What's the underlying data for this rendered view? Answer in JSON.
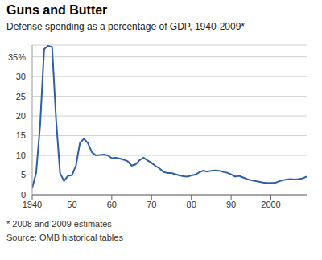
{
  "chart_data": {
    "type": "line",
    "title": "Guns and Butter",
    "subtitle": "Defense spending as a percentage of GDP, 1940-2009*",
    "footnote": "* 2008 and 2009 estimates",
    "source": "Source: OMB historical tables",
    "x": [
      1940,
      1941,
      1942,
      1943,
      1944,
      1945,
      1946,
      1947,
      1948,
      1949,
      1950,
      1951,
      1952,
      1953,
      1954,
      1955,
      1956,
      1957,
      1958,
      1959,
      1960,
      1961,
      1962,
      1963,
      1964,
      1965,
      1966,
      1967,
      1968,
      1969,
      1970,
      1971,
      1972,
      1973,
      1974,
      1975,
      1976,
      1977,
      1978,
      1979,
      1980,
      1981,
      1982,
      1983,
      1984,
      1985,
      1986,
      1987,
      1988,
      1989,
      1990,
      1991,
      1992,
      1993,
      1994,
      1995,
      1996,
      1997,
      1998,
      1999,
      2000,
      2001,
      2002,
      2003,
      2004,
      2005,
      2006,
      2007,
      2008,
      2009
    ],
    "values": [
      1.7,
      5.6,
      17.8,
      37.0,
      37.8,
      37.5,
      19.2,
      5.5,
      3.5,
      4.8,
      5.0,
      7.4,
      13.2,
      14.2,
      13.1,
      10.8,
      10.0,
      10.1,
      10.2,
      10.0,
      9.3,
      9.4,
      9.2,
      8.9,
      8.5,
      7.4,
      7.7,
      8.8,
      9.4,
      8.7,
      8.1,
      7.3,
      6.7,
      5.8,
      5.5,
      5.5,
      5.2,
      4.9,
      4.7,
      4.6,
      4.9,
      5.1,
      5.7,
      6.1,
      5.9,
      6.1,
      6.2,
      6.1,
      5.8,
      5.6,
      5.2,
      4.6,
      4.8,
      4.4,
      4.0,
      3.7,
      3.5,
      3.3,
      3.1,
      3.0,
      3.0,
      3.0,
      3.4,
      3.7,
      3.9,
      4.0,
      3.9,
      4.0,
      4.2,
      4.6
    ],
    "color": "#2b5fa8",
    "xlim": [
      1940,
      2009
    ],
    "xticks": [
      1940,
      {
        "value": 1950,
        "label": "50"
      },
      {
        "value": 1960,
        "label": "60"
      },
      {
        "value": 1970,
        "label": "70"
      },
      {
        "value": 1980,
        "label": "80"
      },
      {
        "value": 1990,
        "label": "90"
      },
      2000
    ],
    "ylim": [
      0,
      38
    ],
    "yticks": [
      0,
      5,
      10,
      15,
      20,
      25,
      30,
      {
        "value": 35,
        "label": "35%"
      }
    ],
    "grid": true
  }
}
